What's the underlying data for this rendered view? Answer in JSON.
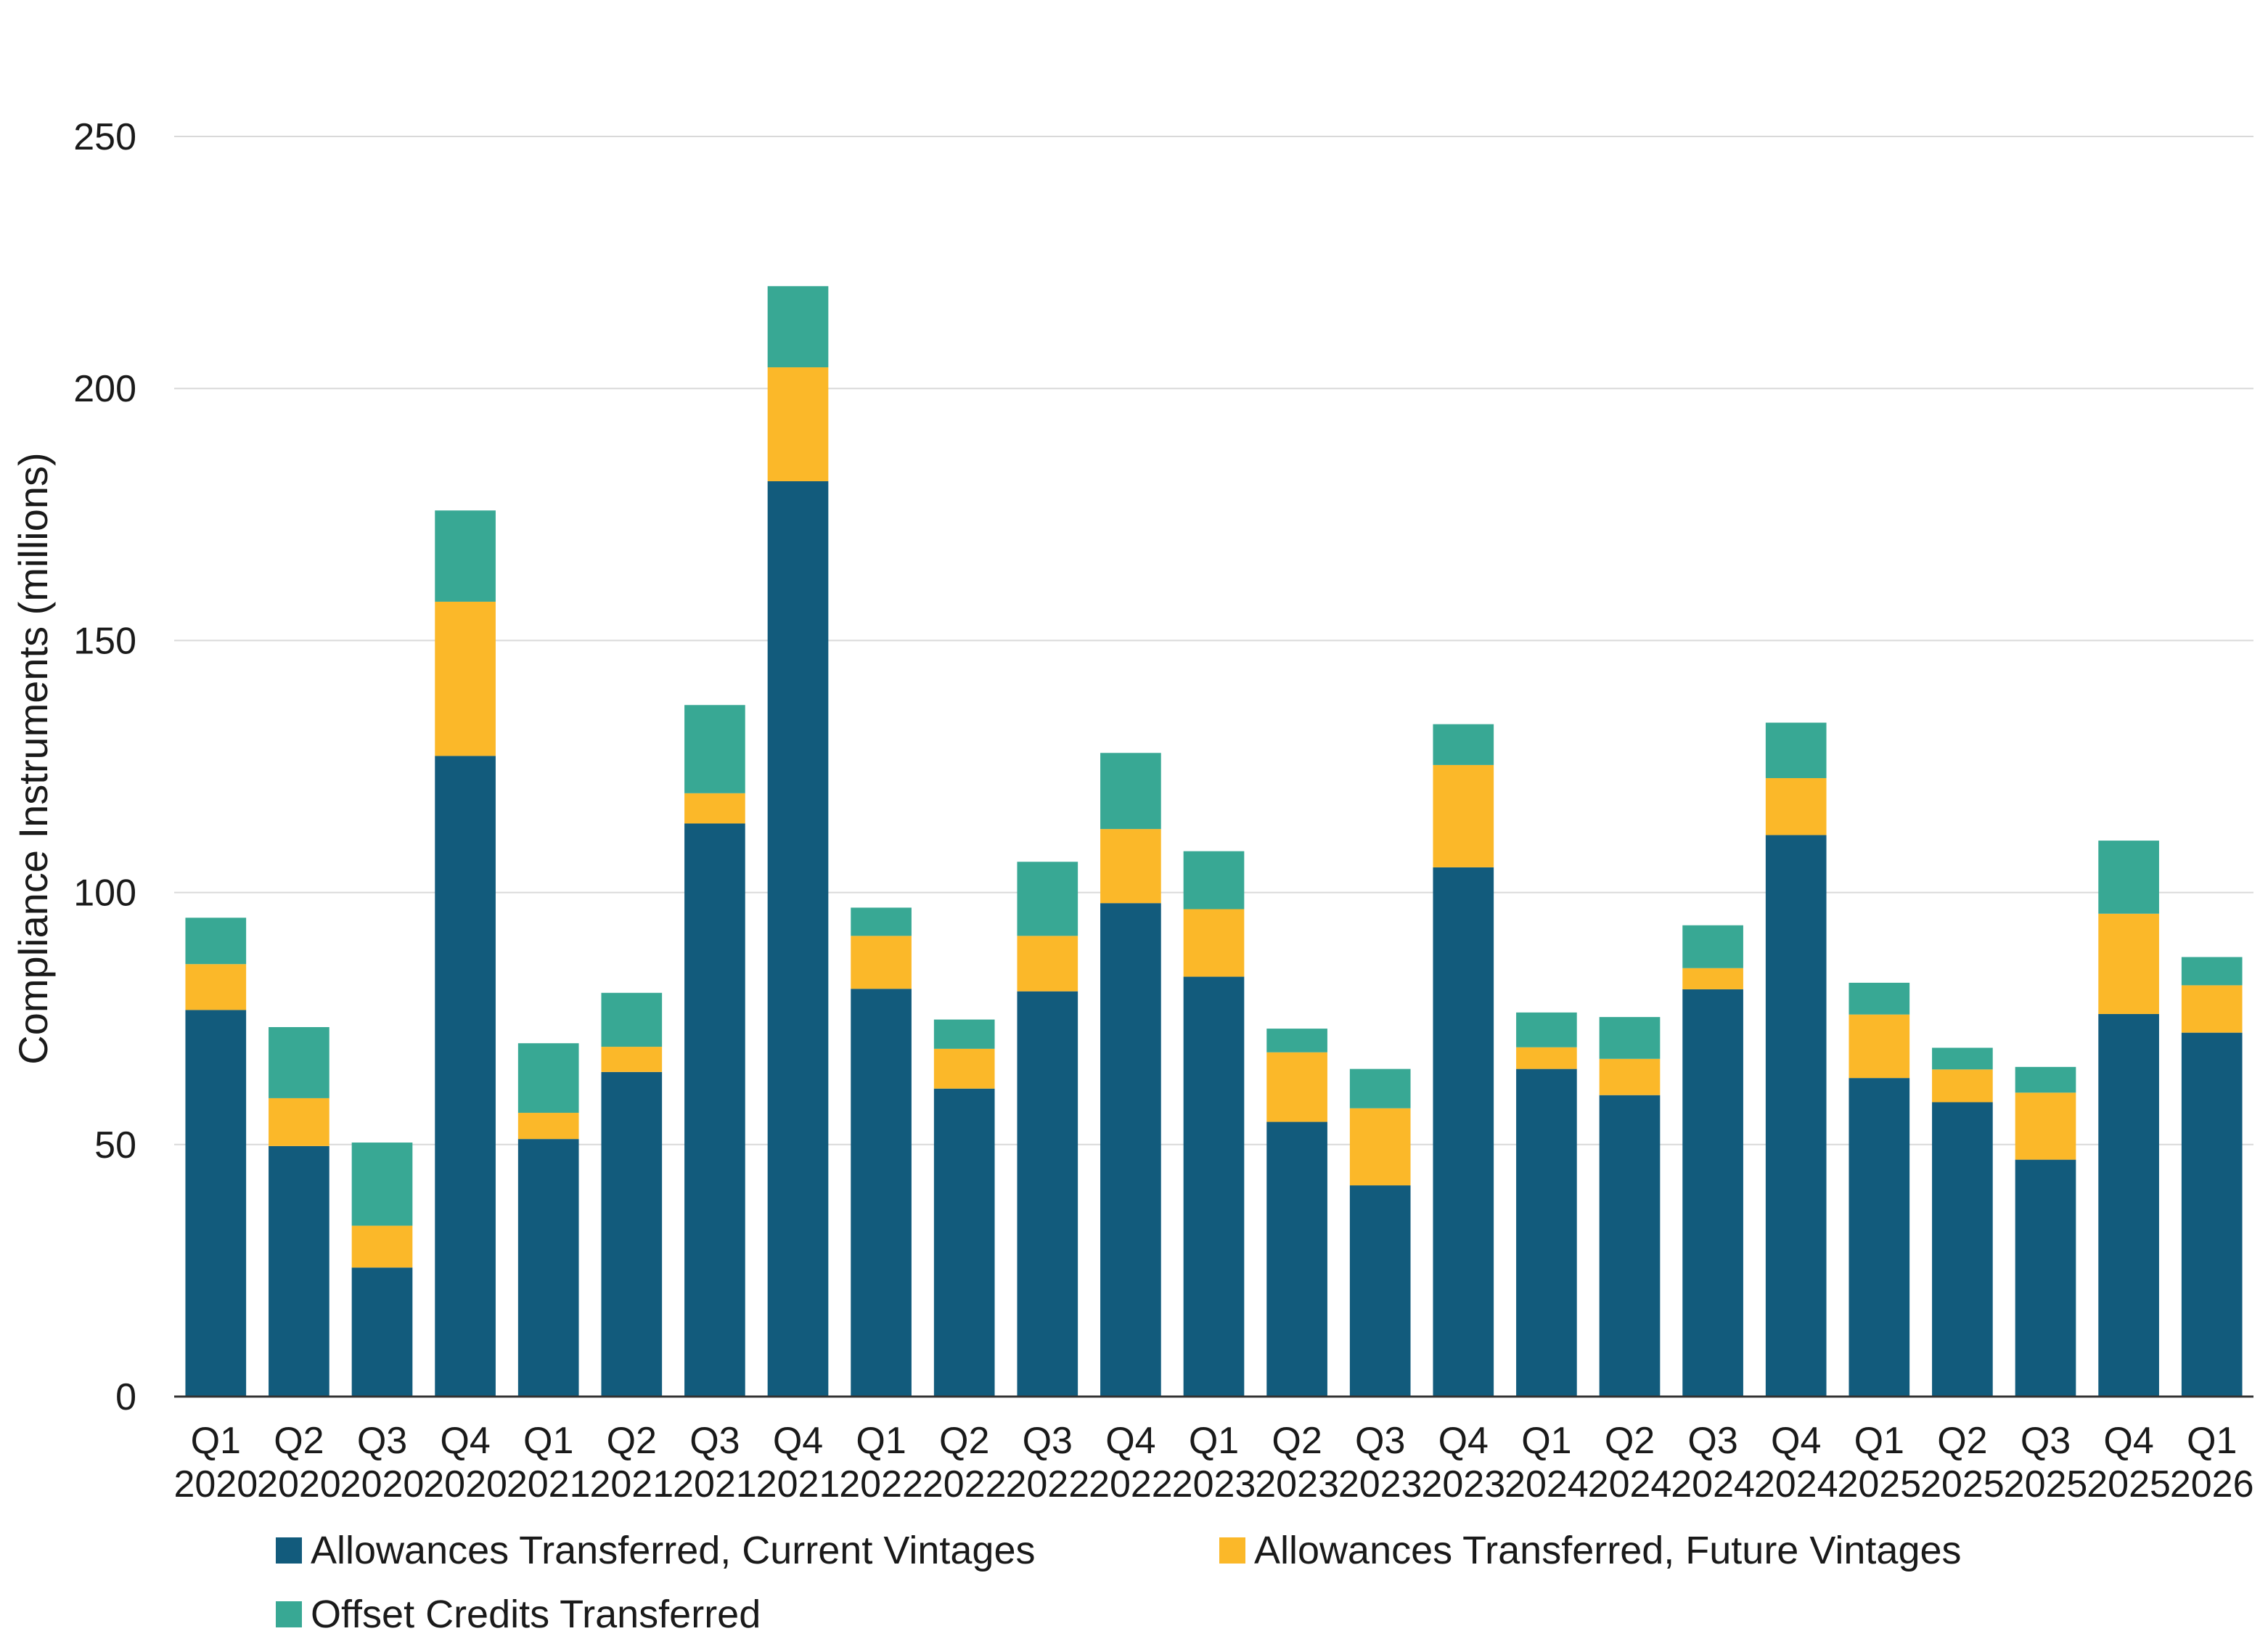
{
  "chart_data": {
    "type": "bar",
    "stacked": true,
    "categories": [
      "Q1 2020",
      "Q2 2020",
      "Q3 2020",
      "Q4 2020",
      "Q1 2021",
      "Q2 2021",
      "Q3 2021",
      "Q4 2021",
      "Q1 2022",
      "Q2 2022",
      "Q3 2022",
      "Q4 2022",
      "Q1 2023",
      "Q2 2023",
      "Q3 2023",
      "Q4 2023",
      "Q1 2024",
      "Q2 2024",
      "Q3 2024",
      "Q4 2024",
      "Q1 2025",
      "Q2 2025",
      "Q3 2025",
      "Q4 2025",
      "Q1 2026"
    ],
    "series": [
      {
        "name": "Allowances Transferred, Current Vintages",
        "color": "#125b7c",
        "values": [
          76.7,
          49.7,
          25.6,
          127.1,
          51.1,
          64.4,
          113.7,
          181.6,
          80.9,
          61.1,
          80.4,
          97.9,
          83.3,
          54.5,
          41.9,
          105.0,
          65.0,
          59.8,
          80.8,
          111.4,
          63.2,
          58.4,
          47.0,
          75.9,
          72.2
        ]
      },
      {
        "name": "Allowances Transferred, Future Vintages",
        "color": "#fbb829",
        "values": [
          9.1,
          9.5,
          8.3,
          30.6,
          5.2,
          5.0,
          6.0,
          22.6,
          10.5,
          7.9,
          11.0,
          14.7,
          13.4,
          13.8,
          15.3,
          20.3,
          4.3,
          7.2,
          4.2,
          11.3,
          12.6,
          6.5,
          13.3,
          19.9,
          9.4
        ]
      },
      {
        "name": "Offset Credits Transferred",
        "color": "#38a894",
        "values": [
          9.2,
          14.1,
          16.5,
          18.1,
          13.8,
          10.7,
          17.5,
          16.1,
          5.6,
          5.8,
          14.7,
          15.1,
          11.5,
          4.7,
          7.8,
          8.1,
          6.9,
          8.3,
          8.5,
          11.0,
          6.3,
          4.3,
          5.1,
          14.5,
          5.6
        ]
      }
    ],
    "xlabel": "",
    "ylabel": "Compliance Instruments (millions)",
    "ylim": [
      0,
      250
    ],
    "yticks": [
      0,
      50,
      100,
      150,
      200,
      250
    ],
    "grid": true,
    "legend_position": "bottom"
  }
}
